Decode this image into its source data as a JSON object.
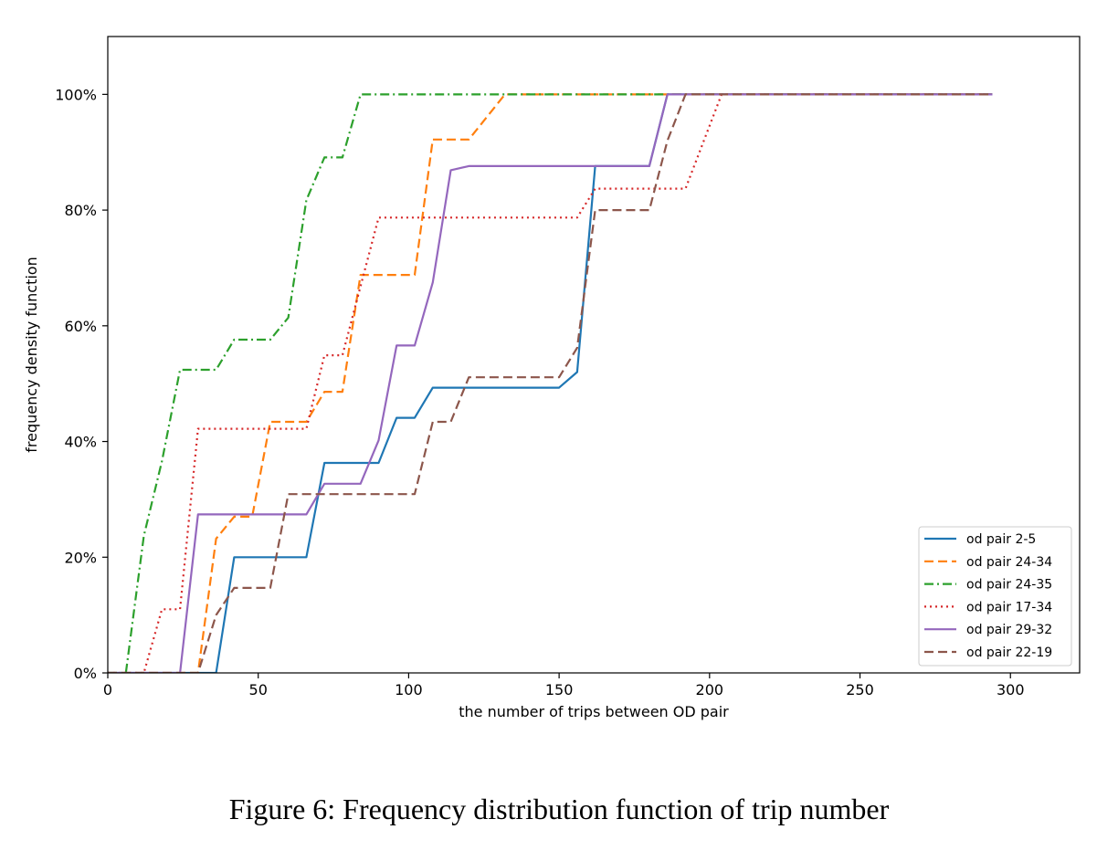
{
  "caption": "Figure 6: Frequency distribution function of trip number",
  "chart_data": {
    "type": "line",
    "title": "",
    "xlabel": "the number of trips between OD pair",
    "ylabel": "frequency density function",
    "xlim": [
      0,
      323
    ],
    "ylim": [
      0,
      1.1
    ],
    "xticks": [
      0,
      50,
      100,
      150,
      200,
      250,
      300
    ],
    "yticks": [
      0,
      0.2,
      0.4,
      0.6,
      0.8,
      1.0
    ],
    "ytick_labels": [
      "0%",
      "20%",
      "40%",
      "60%",
      "80%",
      "100%"
    ],
    "grid": false,
    "legend_position": "lower-right",
    "series": [
      {
        "name": "od pair 2-5",
        "color": "#1f77b4",
        "dash": "solid",
        "x": [
          0,
          36,
          42,
          66,
          72,
          90,
          96,
          102,
          108,
          150,
          156,
          162,
          180,
          186,
          294
        ],
        "y": [
          0,
          0,
          0.2,
          0.2,
          0.363,
          0.363,
          0.441,
          0.441,
          0.493,
          0.493,
          0.52,
          0.876,
          0.876,
          1.0,
          1.0
        ]
      },
      {
        "name": "od pair 24-34",
        "color": "#ff7f0e",
        "dash": "dashed",
        "x": [
          0,
          30,
          36,
          42,
          48,
          54,
          66,
          72,
          78,
          84,
          102,
          108,
          120,
          132,
          294
        ],
        "y": [
          0,
          0,
          0.232,
          0.27,
          0.27,
          0.434,
          0.434,
          0.486,
          0.486,
          0.688,
          0.688,
          0.922,
          0.922,
          1.0,
          1.0
        ]
      },
      {
        "name": "od pair 24-35",
        "color": "#2ca02c",
        "dash": "dashdot",
        "x": [
          0,
          6,
          12,
          18,
          24,
          36,
          42,
          54,
          60,
          66,
          72,
          78,
          84,
          294
        ],
        "y": [
          0,
          0,
          0.237,
          0.366,
          0.524,
          0.524,
          0.576,
          0.576,
          0.614,
          0.817,
          0.891,
          0.891,
          1.0,
          1.0
        ]
      },
      {
        "name": "od pair 17-34",
        "color": "#d62728",
        "dash": "dotted",
        "x": [
          0,
          12,
          18,
          24,
          30,
          66,
          72,
          78,
          90,
          156,
          162,
          192,
          204,
          294
        ],
        "y": [
          0,
          0,
          0.11,
          0.11,
          0.422,
          0.422,
          0.549,
          0.549,
          0.787,
          0.787,
          0.837,
          0.837,
          1.0,
          1.0
        ]
      },
      {
        "name": "od pair 29-32",
        "color": "#9467bd",
        "dash": "solid",
        "x": [
          0,
          24,
          30,
          66,
          72,
          84,
          90,
          96,
          102,
          108,
          114,
          120,
          180,
          186,
          294
        ],
        "y": [
          0,
          0,
          0.274,
          0.274,
          0.327,
          0.327,
          0.402,
          0.566,
          0.566,
          0.675,
          0.869,
          0.876,
          0.876,
          1.0,
          1.0
        ]
      },
      {
        "name": "od pair 22-19",
        "color": "#8c564b",
        "dash": "dashed",
        "x": [
          0,
          30,
          36,
          42,
          54,
          60,
          102,
          108,
          114,
          120,
          150,
          156,
          162,
          180,
          186,
          192,
          294
        ],
        "y": [
          0,
          0,
          0.1,
          0.147,
          0.147,
          0.309,
          0.309,
          0.434,
          0.434,
          0.511,
          0.511,
          0.562,
          0.8,
          0.8,
          0.92,
          1.0,
          1.0
        ]
      }
    ]
  }
}
